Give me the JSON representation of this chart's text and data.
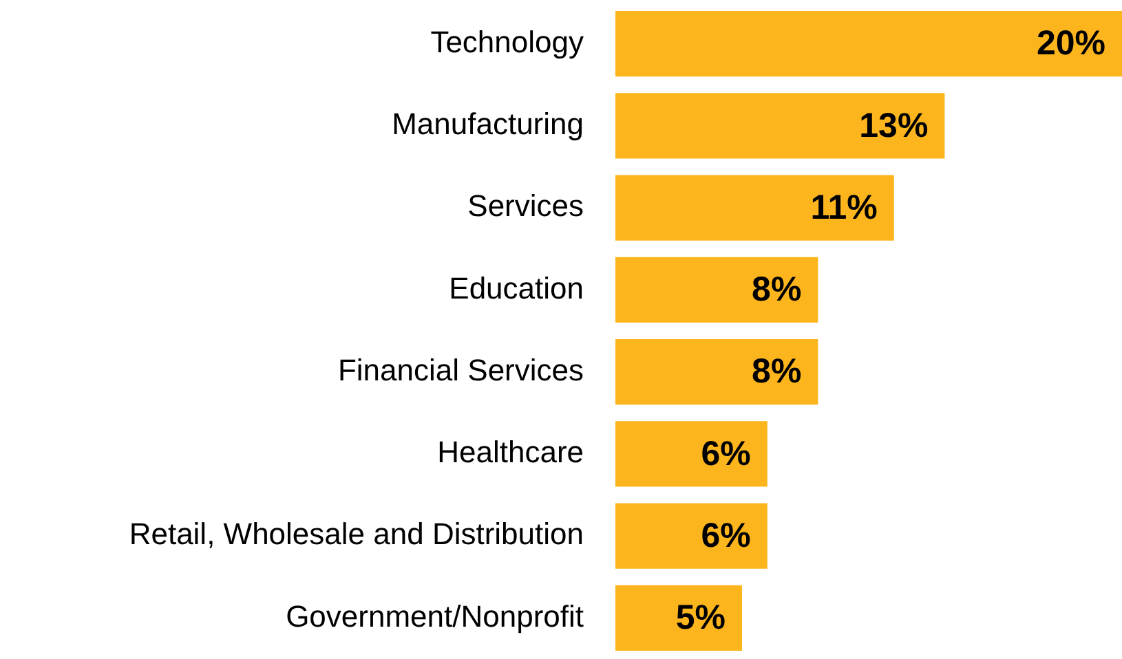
{
  "chart_data": {
    "type": "bar",
    "orientation": "horizontal",
    "tick_labels": "y",
    "categories": [
      "Technology",
      "Manufacturing",
      "Services",
      "Education",
      "Financial Services",
      "Healthcare",
      "Retail, Wholesale and Distribution",
      "Government/Nonprofit"
    ],
    "values": [
      20,
      13,
      11,
      8,
      8,
      6,
      6,
      5
    ],
    "value_labels": [
      "20%",
      "13%",
      "11%",
      "8%",
      "8%",
      "6%",
      "6%",
      "5%"
    ],
    "color": "#fdb51e",
    "legend": false
  }
}
